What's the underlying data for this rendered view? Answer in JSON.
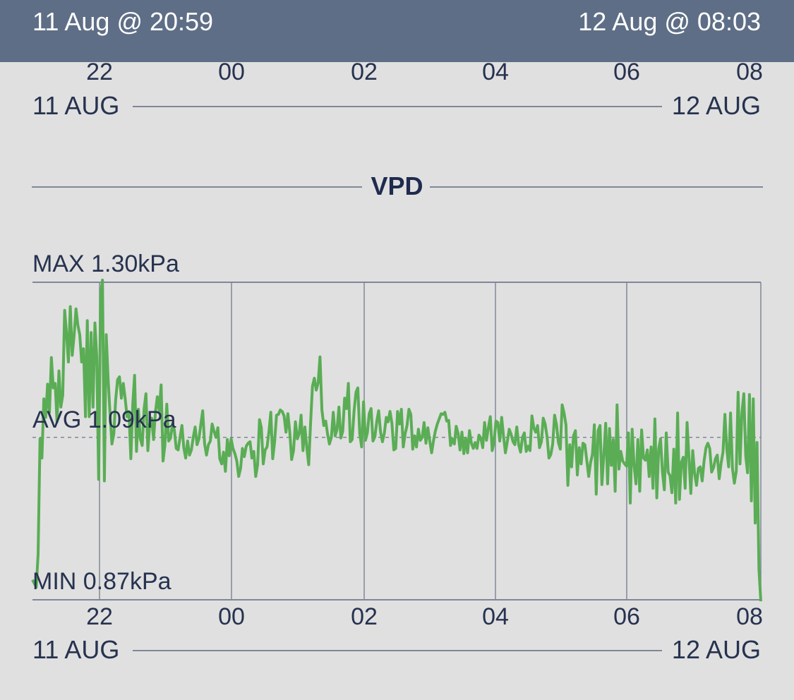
{
  "header": {
    "start": "11 Aug @ 20:59",
    "end": "12 Aug @ 08:03"
  },
  "axis": {
    "ticks": [
      "22",
      "00",
      "02",
      "04",
      "06",
      "08"
    ],
    "start_date": "11 AUG",
    "end_date": "12 AUG"
  },
  "section_title": "VPD",
  "stats": {
    "max": "MAX 1.30kPa",
    "avg": "AVG 1.09kPa",
    "min": "MIN 0.87kPa"
  },
  "colors": {
    "header_bg": "#5e6e86",
    "line": "#5aad55",
    "grid": "#7f8798",
    "text": "#26324f"
  },
  "chart_data": {
    "type": "line",
    "title": "VPD",
    "xlabel": "",
    "ylabel": "",
    "x_ticks": [
      "22",
      "00",
      "02",
      "04",
      "06",
      "08"
    ],
    "x_range": [
      "11 Aug 20:59",
      "12 Aug 08:03"
    ],
    "ylim": [
      0.87,
      1.3
    ],
    "avg": 1.09,
    "grid": true,
    "series": [
      {
        "values": [
          0.897,
          0.892,
          0.887,
          0.932,
          1.088,
          1.062,
          1.142,
          1.117,
          1.162,
          1.124,
          1.198,
          1.157,
          1.163,
          1.111,
          1.18,
          1.131,
          1.147,
          1.262,
          1.232,
          1.192,
          1.267,
          1.201,
          1.228,
          1.264,
          1.242,
          1.229,
          1.192,
          1.21,
          1.118,
          1.248,
          1.118,
          1.232,
          1.131,
          1.245,
          1.198,
          1.033,
          1.283,
          1.303,
          1.031,
          1.229,
          1.169,
          1.122,
          1.081,
          1.095,
          1.141,
          1.168,
          1.172,
          1.143,
          1.163,
          1.143,
          1.118,
          1.125,
          1.061,
          1.135,
          1.174,
          1.071,
          1.128,
          1.088,
          1.079,
          1.129,
          1.149,
          1.072,
          1.108,
          1.116,
          1.087,
          1.124,
          1.145,
          1.126,
          1.161,
          1.058,
          1.079,
          1.135,
          1.085,
          1.089,
          1.109,
          1.1,
          1.075,
          1.073,
          1.09,
          1.106,
          1.076,
          1.062,
          1.085,
          1.066,
          1.073,
          1.09,
          1.104,
          1.08,
          1.088,
          1.108,
          1.126,
          1.081,
          1.066,
          1.08,
          1.085,
          1.108,
          1.098,
          1.09,
          1.103,
          1.061,
          1.054,
          1.07,
          1.044,
          1.087,
          1.065,
          1.088,
          1.075,
          1.068,
          1.058,
          1.037,
          1.048,
          1.075,
          1.064,
          1.078,
          1.082,
          1.084,
          1.062,
          1.071,
          1.037,
          1.053,
          1.114,
          1.103,
          1.054,
          1.073,
          1.077,
          1.098,
          1.124,
          1.061,
          1.084,
          1.12,
          1.121,
          1.127,
          1.125,
          1.119,
          1.097,
          1.122,
          1.097,
          1.06,
          1.072,
          1.111,
          1.088,
          1.095,
          1.12,
          1.072,
          1.104,
          1.076,
          1.053,
          1.108,
          1.159,
          1.17,
          1.154,
          1.164,
          1.199,
          1.127,
          1.106,
          1.112,
          1.094,
          1.081,
          1.09,
          1.124,
          1.092,
          1.101,
          1.131,
          1.089,
          1.098,
          1.143,
          1.129,
          1.163,
          1.084,
          1.087,
          1.126,
          1.151,
          1.157,
          1.095,
          1.077,
          1.138,
          1.086,
          1.096,
          1.122,
          1.129,
          1.085,
          1.091,
          1.112,
          1.126,
          1.097,
          1.084,
          1.096,
          1.117,
          1.111,
          1.125,
          1.109,
          1.073,
          1.075,
          1.125,
          1.108,
          1.128,
          1.077,
          1.095,
          1.106,
          1.128,
          1.121,
          1.074,
          1.092,
          1.077,
          1.101,
          1.086,
          1.09,
          1.11,
          1.082,
          1.103,
          1.085,
          1.069,
          1.086,
          1.099,
          1.108,
          1.115,
          1.122,
          1.121,
          1.124,
          1.112,
          1.113,
          1.079,
          1.088,
          1.081,
          1.105,
          1.095,
          1.073,
          1.097,
          1.068,
          1.089,
          1.069,
          1.099,
          1.082,
          1.075,
          1.083,
          1.075,
          1.093,
          1.089,
          1.076,
          1.11,
          1.086,
          1.103,
          1.118,
          1.072,
          1.083,
          1.112,
          1.11,
          1.085,
          1.117,
          1.092,
          1.069,
          1.084,
          1.101,
          1.094,
          1.084,
          1.08,
          1.104,
          1.08,
          1.07,
          1.09,
          1.096,
          1.071,
          1.078,
          1.072,
          1.119,
          1.103,
          1.097,
          1.106,
          1.076,
          1.084,
          1.116,
          1.108,
          1.091,
          1.062,
          1.067,
          1.081,
          1.12,
          1.107,
          1.083,
          1.074,
          1.134,
          1.123,
          1.107,
          1.025,
          1.08,
          1.05,
          1.092,
          1.099,
          1.039,
          1.076,
          1.054,
          1.082,
          1.08,
          1.059,
          1.037,
          1.056,
          1.067,
          1.107,
          1.013,
          1.099,
          1.106,
          1.026,
          1.065,
          1.109,
          1.027,
          1.102,
          1.052,
          1.087,
          1.017,
          1.134,
          1.047,
          1.071,
          1.058,
          1.054,
          1.051,
          1.096,
          1.001,
          1.101,
          1.052,
          1.027,
          1.087,
          1.017,
          1.1,
          1.062,
          1.059,
          1.073,
          1.037,
          1.077,
          1.021,
          1.115,
          1.008,
          1.074,
          1.088,
          1.043,
          1.019,
          1.096,
          1.043,
          1.038,
          1.015,
          1.074,
          1.001,
          1.123,
          1.006,
          1.056,
          1.063,
          1.021,
          1.11,
          1.064,
          1.014,
          1.072,
          1.041,
          1.025,
          1.048,
          1.05,
          1.031,
          1.058,
          1.076,
          1.082,
          1.075,
          1.043,
          1.049,
          1.061,
          1.066,
          1.034,
          1.055,
          1.07,
          1.121,
          1.074,
          1.05,
          1.123,
          1.048,
          1.028,
          1.044,
          1.151,
          1.054,
          1.123,
          1.149,
          1.065,
          1.042,
          1.148,
          1.004,
          1.142,
          0.974,
          1.083,
          0.912,
          0.868
        ]
      }
    ]
  }
}
